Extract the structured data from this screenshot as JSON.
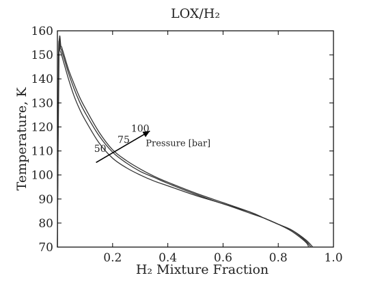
{
  "chart_data": {
    "type": "line",
    "title": "LOX/H₂",
    "xlabel": "H₂ Mixture Fraction",
    "ylabel": "Temperature, K",
    "xlim": [
      0.0,
      1.0
    ],
    "ylim": [
      70,
      160
    ],
    "xticks": [
      0.2,
      0.4,
      0.6,
      0.8,
      1.0
    ],
    "xtick_labels": [
      "0.2",
      "0.4",
      "0.6",
      "0.8",
      "1.0"
    ],
    "yticks": [
      70,
      80,
      90,
      100,
      110,
      120,
      130,
      140,
      150,
      160
    ],
    "ytick_labels": [
      "70",
      "80",
      "90",
      "100",
      "110",
      "120",
      "130",
      "140",
      "150",
      "160"
    ],
    "grid": false,
    "legend": "none",
    "series": [
      {
        "name": "50",
        "x": [
          0.0,
          0.004,
          0.01,
          0.02,
          0.04,
          0.06,
          0.08,
          0.1,
          0.15,
          0.2,
          0.25,
          0.3,
          0.35,
          0.4,
          0.5,
          0.6,
          0.7,
          0.75,
          0.8,
          0.85,
          0.9,
          0.91
        ],
        "y": [
          70,
          149,
          151.5,
          148,
          140,
          133,
          127.5,
          123,
          113.5,
          107,
          103,
          100,
          97.5,
          95.5,
          91.5,
          88,
          84,
          82,
          79.5,
          76.5,
          72,
          70
        ]
      },
      {
        "name": "75",
        "x": [
          0.0,
          0.005,
          0.012,
          0.02,
          0.04,
          0.06,
          0.08,
          0.1,
          0.15,
          0.2,
          0.25,
          0.3,
          0.35,
          0.4,
          0.5,
          0.6,
          0.7,
          0.75,
          0.8,
          0.85,
          0.9,
          0.918
        ],
        "y": [
          70,
          150,
          152.5,
          150,
          142.5,
          136,
          130.5,
          126,
          116.5,
          109.5,
          105,
          101.5,
          99,
          96.5,
          92,
          88,
          84.5,
          82,
          79.5,
          77,
          72.5,
          70
        ]
      },
      {
        "name": "100",
        "x": [
          0.0,
          0.006,
          0.013,
          0.02,
          0.04,
          0.06,
          0.08,
          0.1,
          0.15,
          0.2,
          0.25,
          0.3,
          0.35,
          0.4,
          0.5,
          0.6,
          0.7,
          0.75,
          0.8,
          0.85,
          0.9,
          0.925
        ],
        "y": [
          70,
          151,
          153.5,
          151.5,
          144,
          138,
          132.5,
          128,
          118,
          110.5,
          106,
          102.5,
          99.5,
          97,
          92.5,
          88.5,
          84.5,
          82,
          79.5,
          77,
          73,
          70
        ]
      }
    ],
    "annotations": {
      "arrow_label": "Pressure [bar]",
      "pressure_labels": [
        "50",
        "75",
        "100"
      ]
    }
  }
}
